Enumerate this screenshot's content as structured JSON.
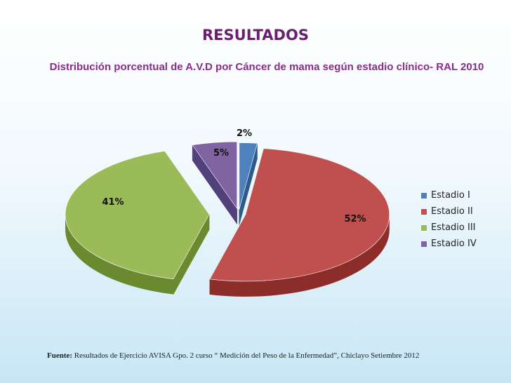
{
  "slide": {
    "title": "RESULTADOS",
    "chart_title": "Distribución porcentual de A.V.D por Cáncer de mama según estadio clínico- RAL 2010",
    "source_prefix": "Fuente:",
    "source_text": "Resultados de Ejercicio AVISA Gpo. 2 curso “ Medición del Peso de la Enfermedad”, Chiclayo Setiembre 2012"
  },
  "chart_data": {
    "type": "pie",
    "title": "Distribución porcentual de A.V.D por Cáncer de mama según estadio clínico- RAL 2010",
    "three_d": true,
    "exploded": true,
    "legend_position": "right",
    "categories": [
      "Estadio I",
      "Estadio II",
      "Estadio III",
      "Estadio IV"
    ],
    "values": [
      2,
      52,
      41,
      5
    ],
    "data_labels": [
      "2%",
      "52%",
      "41%",
      "5%"
    ],
    "colors": [
      "#4f81bd",
      "#c0504d",
      "#9bbb59",
      "#8064a2"
    ],
    "side_colors": [
      "#2f5a8c",
      "#8c2d2a",
      "#6b8a30",
      "#52407a"
    ]
  }
}
